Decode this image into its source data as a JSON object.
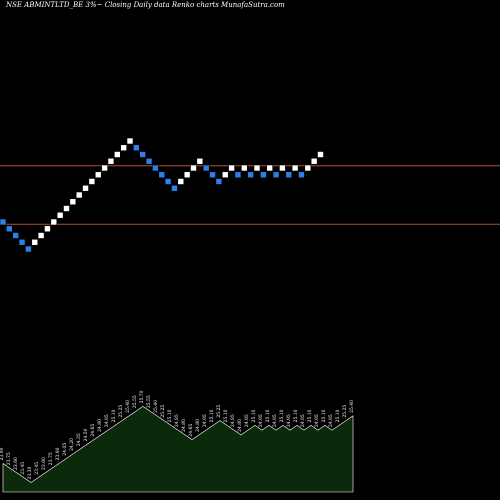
{
  "chart_data": {
    "type": "renko",
    "title": "NSE ABMINTLTD_BE 3%~ Closing Daily data Renko charts MunafaSutra.com",
    "colors": {
      "background": "#000000",
      "up_brick": "#ffffff",
      "down_brick": "#2f7fe8",
      "reference_line": "#b5502e",
      "volume_fill": "#0b2a0b",
      "volume_edge": "#ffffff"
    },
    "reference_lines": [
      25.15,
      23.85
    ],
    "bricks": [
      {
        "d": "down",
        "y": 23.9
      },
      {
        "d": "down",
        "y": 23.75
      },
      {
        "d": "down",
        "y": 23.6
      },
      {
        "d": "down",
        "y": 23.45
      },
      {
        "d": "down",
        "y": 23.3
      },
      {
        "d": "up",
        "y": 23.45
      },
      {
        "d": "up",
        "y": 23.6
      },
      {
        "d": "up",
        "y": 23.75
      },
      {
        "d": "up",
        "y": 23.9
      },
      {
        "d": "up",
        "y": 24.05
      },
      {
        "d": "up",
        "y": 24.2
      },
      {
        "d": "up",
        "y": 24.35
      },
      {
        "d": "up",
        "y": 24.5
      },
      {
        "d": "up",
        "y": 24.65
      },
      {
        "d": "up",
        "y": 24.8
      },
      {
        "d": "up",
        "y": 24.95
      },
      {
        "d": "up",
        "y": 25.1
      },
      {
        "d": "up",
        "y": 25.25
      },
      {
        "d": "up",
        "y": 25.4
      },
      {
        "d": "up",
        "y": 25.55
      },
      {
        "d": "up",
        "y": 25.7
      },
      {
        "d": "down",
        "y": 25.55
      },
      {
        "d": "down",
        "y": 25.4
      },
      {
        "d": "down",
        "y": 25.25
      },
      {
        "d": "down",
        "y": 25.1
      },
      {
        "d": "down",
        "y": 24.95
      },
      {
        "d": "down",
        "y": 24.8
      },
      {
        "d": "down",
        "y": 24.65
      },
      {
        "d": "up",
        "y": 24.8
      },
      {
        "d": "up",
        "y": 24.95
      },
      {
        "d": "up",
        "y": 25.1
      },
      {
        "d": "up",
        "y": 25.25
      },
      {
        "d": "down",
        "y": 25.1
      },
      {
        "d": "down",
        "y": 24.95
      },
      {
        "d": "down",
        "y": 24.8
      },
      {
        "d": "up",
        "y": 24.95
      },
      {
        "d": "up",
        "y": 25.1
      },
      {
        "d": "down",
        "y": 24.95
      },
      {
        "d": "up",
        "y": 25.1
      },
      {
        "d": "down",
        "y": 24.95
      },
      {
        "d": "up",
        "y": 25.1
      },
      {
        "d": "down",
        "y": 24.95
      },
      {
        "d": "up",
        "y": 25.1
      },
      {
        "d": "down",
        "y": 24.95
      },
      {
        "d": "up",
        "y": 25.1
      },
      {
        "d": "down",
        "y": 24.95
      },
      {
        "d": "up",
        "y": 25.1
      },
      {
        "d": "down",
        "y": 24.95
      },
      {
        "d": "up",
        "y": 25.1
      },
      {
        "d": "up",
        "y": 25.25
      },
      {
        "d": "up",
        "y": 25.4
      }
    ],
    "ylim": [
      21.5,
      27.5
    ],
    "volume_series_labels": [
      "23.90",
      "23.75",
      "23.60",
      "23.45",
      "23.30",
      "23.45",
      "23.60",
      "23.75",
      "23.90",
      "24.05",
      "24.20",
      "24.35",
      "24.50",
      "24.65",
      "24.80",
      "24.95",
      "25.10",
      "25.25",
      "25.40",
      "25.55",
      "25.70",
      "25.55",
      "25.40",
      "25.25",
      "25.10",
      "24.95",
      "24.80",
      "24.65",
      "24.80",
      "24.95",
      "25.10",
      "25.25",
      "25.10",
      "24.95",
      "24.80",
      "24.95",
      "25.10",
      "24.95",
      "25.10",
      "24.95",
      "25.10",
      "24.95",
      "25.10",
      "24.95",
      "25.10",
      "24.95",
      "25.10",
      "24.95",
      "25.10",
      "25.25",
      "25.40"
    ]
  }
}
